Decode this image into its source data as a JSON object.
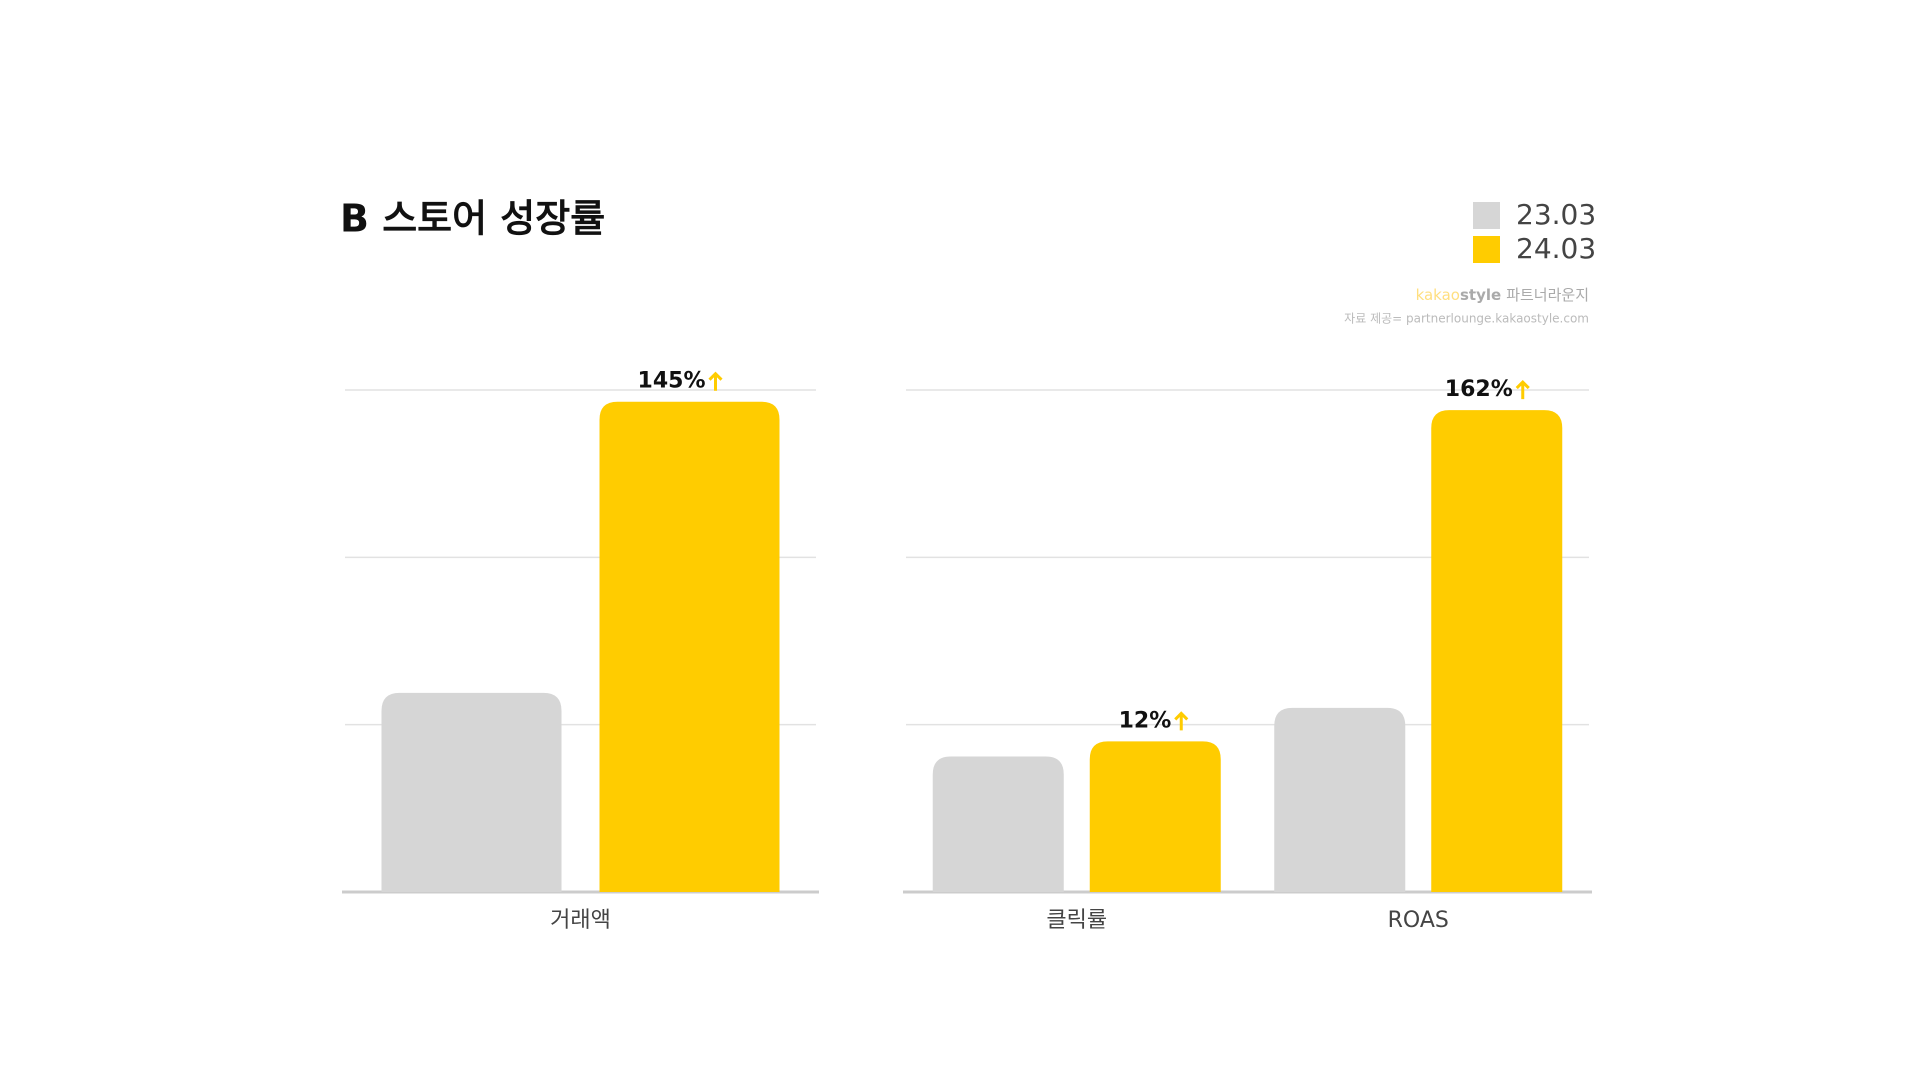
{
  "title": "B 스토어 성장률",
  "source": {
    "brand_a": "kakao",
    "brand_b": "style",
    "brand_c": "파트너라운지",
    "credit": "자료 제공= partnerlounge.kakaostyle.com"
  },
  "chart_data": [
    {
      "type": "bar",
      "categories": [
        "거래액"
      ],
      "series": [
        {
          "name": "23.03",
          "color": "#d6d6d6",
          "values": [
            1.19
          ]
        },
        {
          "name": "24.03",
          "color": "#ffcc00",
          "values": [
            2.93
          ]
        }
      ],
      "growth": {
        "values": [
          145
        ],
        "value_labels": [
          "145%"
        ]
      },
      "ylim": [
        0,
        3
      ],
      "yticks": [
        0,
        1,
        2,
        3
      ],
      "grid": true
    },
    {
      "type": "bar",
      "categories": [
        "클릭률",
        "ROAS"
      ],
      "series": [
        {
          "name": "23.03",
          "color": "#d6d6d6",
          "values": [
            0.81,
            1.1
          ]
        },
        {
          "name": "24.03",
          "color": "#ffcc00",
          "values": [
            0.9,
            2.88
          ]
        }
      ],
      "growth": {
        "values": [
          12,
          162
        ],
        "value_labels": [
          "12%",
          "162%"
        ]
      },
      "ylim": [
        0,
        3
      ],
      "yticks": [
        0,
        1,
        2,
        3
      ],
      "grid": true
    }
  ]
}
